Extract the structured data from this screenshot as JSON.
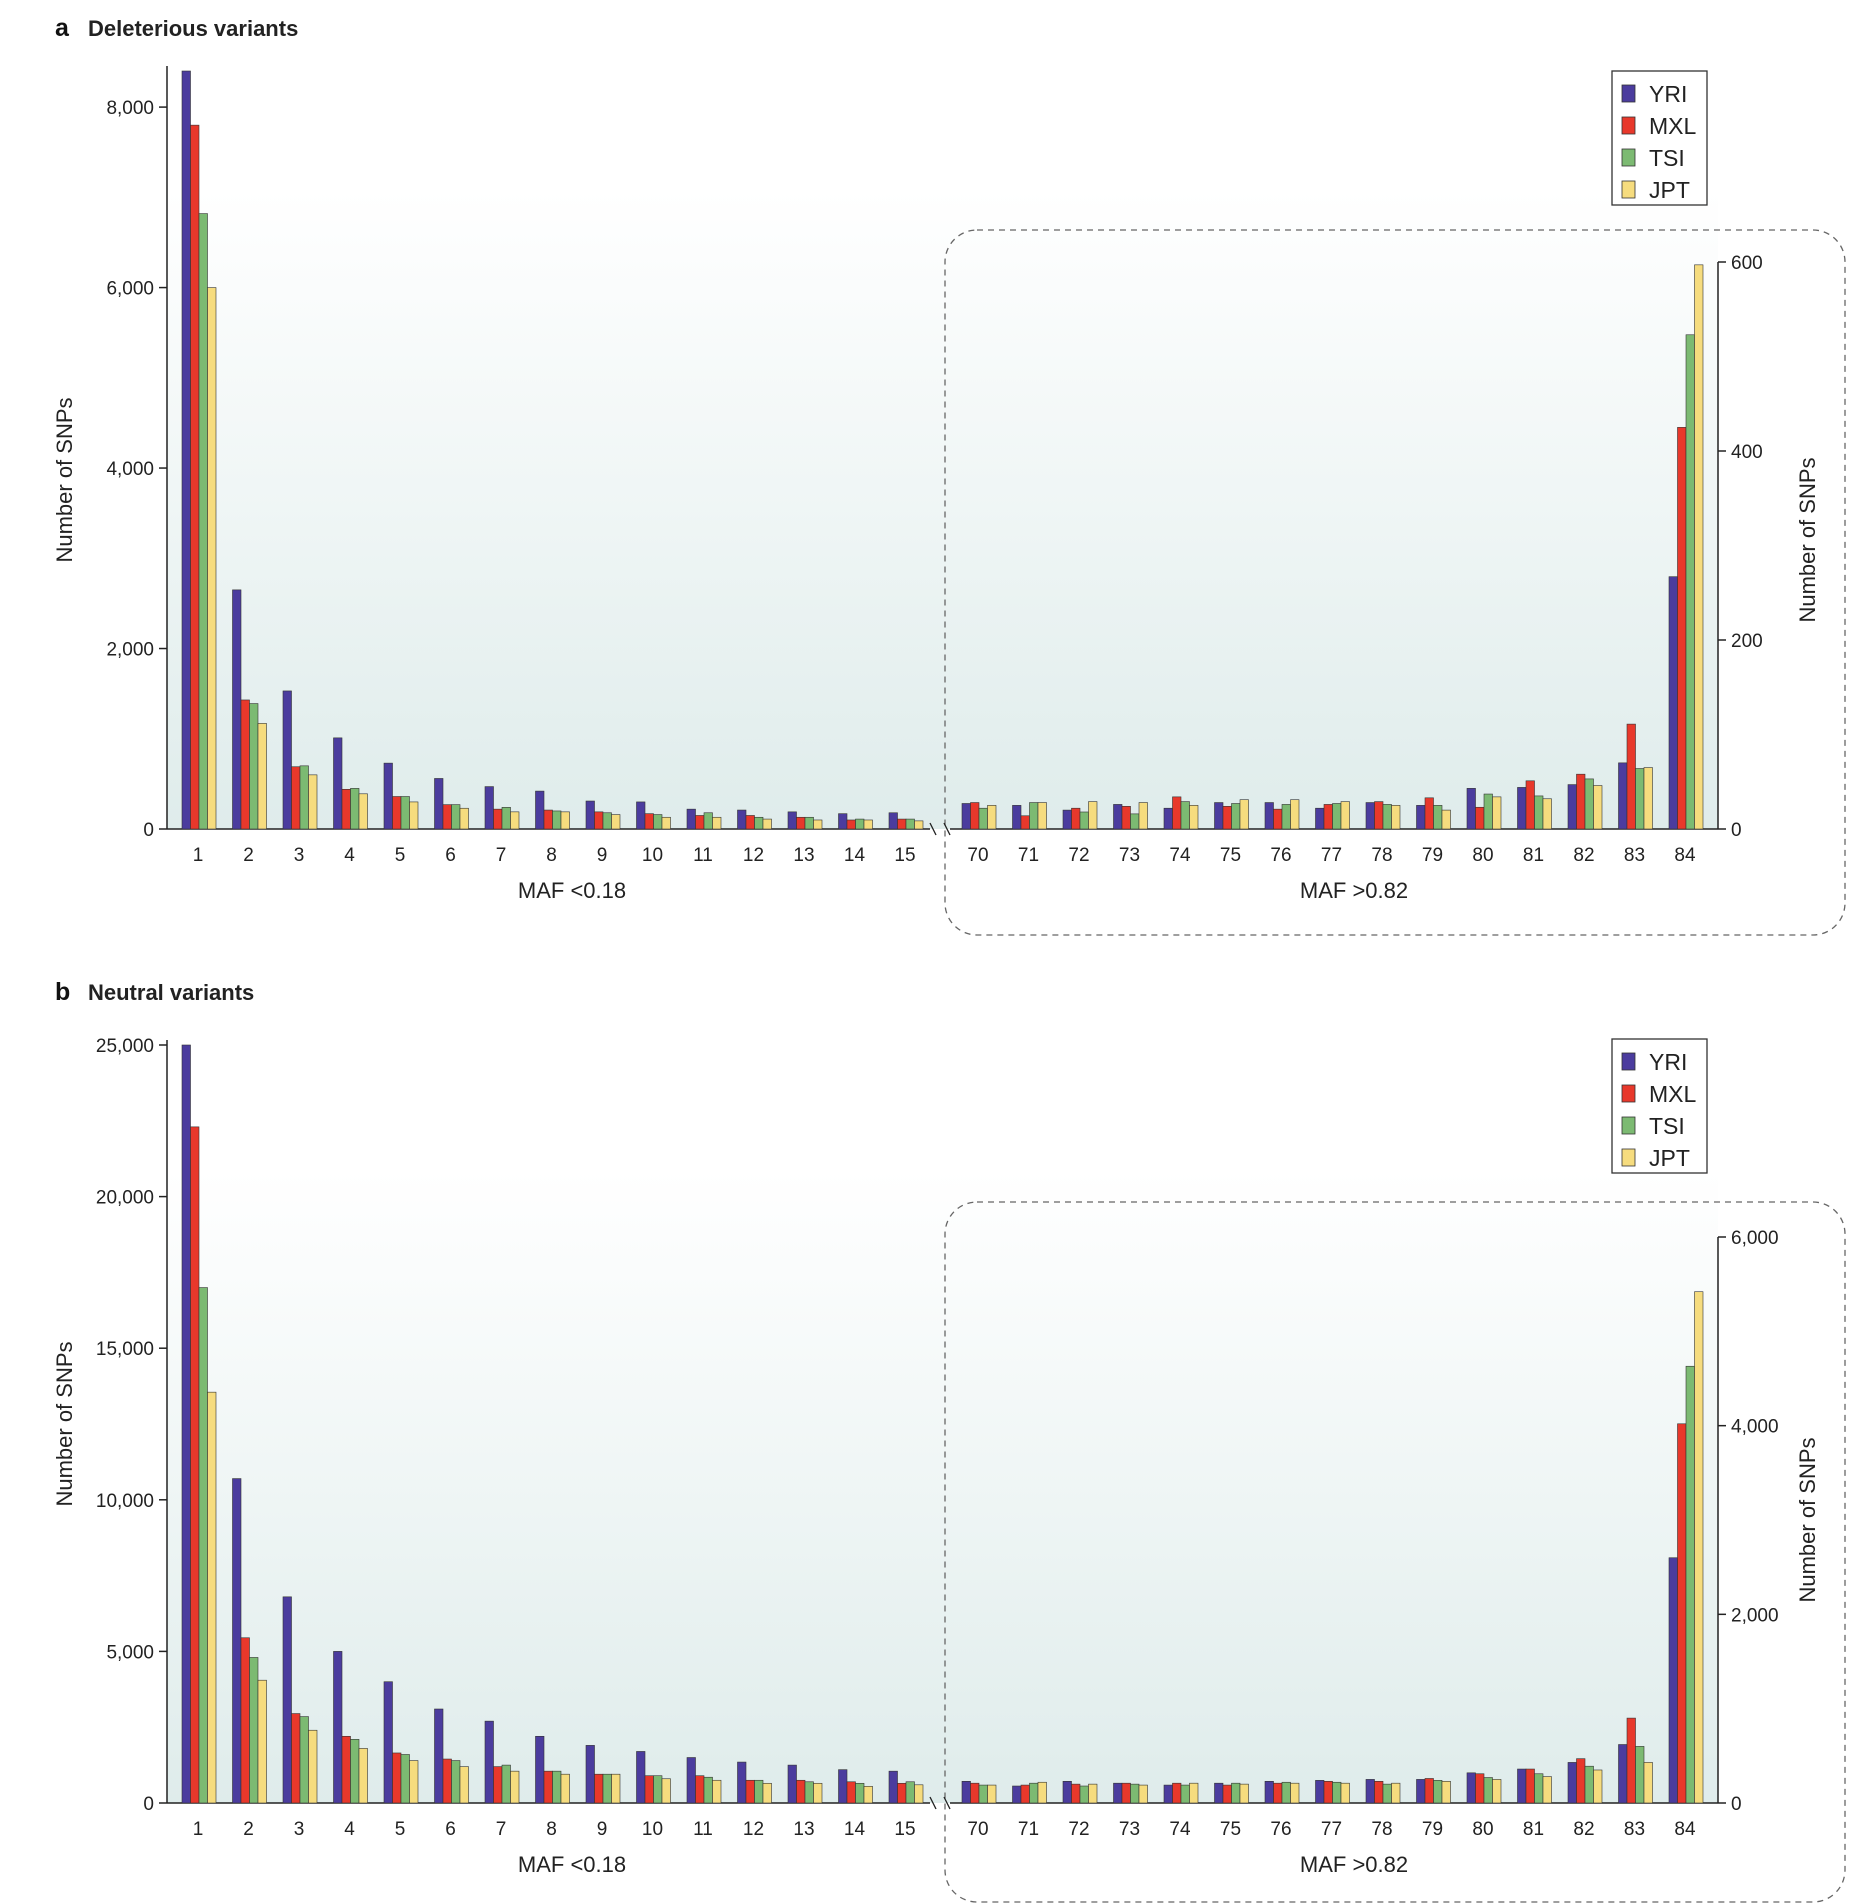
{
  "colors": {
    "YRI": "#4b3c9e",
    "MXL": "#e8382b",
    "TSI": "#7cba72",
    "JPT": "#f6dc7e",
    "gradient_top": "#ffffff",
    "gradient_bottom": "#dfeceb"
  },
  "chart_data": [
    {
      "type": "bar",
      "panel": "a",
      "title": "Deleterious variants",
      "legend": [
        "YRI",
        "MXL",
        "TSI",
        "JPT"
      ],
      "legend_position": "top-right",
      "left": {
        "xlabel": "MAF <0.18",
        "ylabel": "Number of SNPs",
        "ylim": [
          0,
          8400
        ],
        "yticks": [
          0,
          2000,
          4000,
          6000,
          8000
        ],
        "ytick_labels": [
          "0",
          "2,000",
          "4,000",
          "6,000",
          "8,000"
        ],
        "categories": [
          "1",
          "2",
          "3",
          "4",
          "5",
          "6",
          "7",
          "8",
          "9",
          "10",
          "11",
          "12",
          "13",
          "14",
          "15"
        ],
        "series": [
          {
            "name": "YRI",
            "values": [
              8400,
              2650,
              1530,
              1010,
              730,
              560,
              470,
              420,
              310,
              300,
              220,
              210,
              190,
              170,
              180
            ]
          },
          {
            "name": "MXL",
            "values": [
              7800,
              1430,
              690,
              440,
              360,
              270,
              220,
              210,
              190,
              170,
              150,
              150,
              130,
              100,
              110
            ]
          },
          {
            "name": "TSI",
            "values": [
              6820,
              1390,
              700,
              450,
              360,
              270,
              240,
              200,
              180,
              160,
              180,
              130,
              130,
              110,
              110
            ]
          },
          {
            "name": "JPT",
            "values": [
              6000,
              1170,
              600,
              390,
              300,
              230,
              190,
              190,
              160,
              130,
              130,
              110,
              100,
              100,
              90
            ]
          }
        ]
      },
      "right": {
        "xlabel": "MAF >0.82",
        "ylabel": "Number of SNPs",
        "ylim": [
          0,
          600
        ],
        "yticks": [
          0,
          200,
          400,
          600
        ],
        "ytick_labels": [
          "0",
          "200",
          "400",
          "600"
        ],
        "categories": [
          "70",
          "71",
          "72",
          "73",
          "74",
          "75",
          "76",
          "77",
          "78",
          "79",
          "80",
          "81",
          "82",
          "83",
          "84"
        ],
        "series": [
          {
            "name": "YRI",
            "values": [
              27,
              25,
              20,
              26,
              22,
              28,
              28,
              22,
              28,
              25,
              43,
              44,
              47,
              70,
              267
            ]
          },
          {
            "name": "MXL",
            "values": [
              28,
              14,
              22,
              24,
              34,
              24,
              21,
              26,
              29,
              33,
              23,
              51,
              58,
              111,
              425
            ]
          },
          {
            "name": "TSI",
            "values": [
              22,
              28,
              18,
              16,
              29,
              27,
              26,
              27,
              26,
              25,
              37,
              35,
              53,
              64,
              523
            ]
          },
          {
            "name": "JPT",
            "values": [
              25,
              28,
              29,
              28,
              25,
              31,
              31,
              29,
              25,
              20,
              34,
              32,
              46,
              65,
              597
            ]
          }
        ]
      }
    },
    {
      "type": "bar",
      "panel": "b",
      "title": "Neutral variants",
      "legend": [
        "YRI",
        "MXL",
        "TSI",
        "JPT"
      ],
      "legend_position": "top-right",
      "left": {
        "xlabel": "MAF <0.18",
        "ylabel": "Number of SNPs",
        "ylim": [
          0,
          25000
        ],
        "yticks": [
          0,
          5000,
          10000,
          15000,
          20000,
          25000
        ],
        "ytick_labels": [
          "0",
          "5,000",
          "10,000",
          "15,000",
          "20,000",
          "25,000"
        ],
        "categories": [
          "1",
          "2",
          "3",
          "4",
          "5",
          "6",
          "7",
          "8",
          "9",
          "10",
          "11",
          "12",
          "13",
          "14",
          "15"
        ],
        "series": [
          {
            "name": "YRI",
            "values": [
              25000,
              10700,
              6800,
              5000,
              4000,
              3100,
              2700,
              2200,
              1900,
              1700,
              1500,
              1350,
              1250,
              1100,
              1050
            ]
          },
          {
            "name": "MXL",
            "values": [
              22300,
              5450,
              2950,
              2200,
              1650,
              1450,
              1200,
              1050,
              950,
              900,
              900,
              750,
              750,
              700,
              650
            ]
          },
          {
            "name": "TSI",
            "values": [
              17000,
              4800,
              2850,
              2100,
              1600,
              1400,
              1250,
              1050,
              950,
              900,
              850,
              750,
              700,
              650,
              700
            ]
          },
          {
            "name": "JPT",
            "values": [
              13550,
              4050,
              2400,
              1800,
              1400,
              1200,
              1050,
              950,
              950,
              800,
              750,
              650,
              650,
              550,
              600
            ]
          }
        ]
      },
      "right": {
        "xlabel": "MAF >0.82",
        "ylabel": "Number of SNPs",
        "ylim": [
          0,
          6000
        ],
        "yticks": [
          0,
          2000,
          4000,
          6000
        ],
        "ytick_labels": [
          "0",
          "2,000",
          "4,000",
          "6,000"
        ],
        "categories": [
          "70",
          "71",
          "72",
          "73",
          "74",
          "75",
          "76",
          "77",
          "78",
          "79",
          "80",
          "81",
          "82",
          "83",
          "84"
        ],
        "series": [
          {
            "name": "YRI",
            "values": [
              230,
              180,
              230,
              210,
              190,
              210,
              230,
              240,
              250,
              250,
              320,
              360,
              430,
              620,
              2600
            ]
          },
          {
            "name": "MXL",
            "values": [
              210,
              190,
              200,
              210,
              210,
              190,
              210,
              230,
              230,
              260,
              310,
              360,
              470,
              900,
              4020
            ]
          },
          {
            "name": "TSI",
            "values": [
              190,
              210,
              180,
              200,
              190,
              210,
              220,
              220,
              200,
              240,
              270,
              310,
              390,
              600,
              4630
            ]
          },
          {
            "name": "JPT",
            "values": [
              190,
              220,
              200,
              190,
              210,
              200,
              210,
              210,
              210,
              230,
              250,
              280,
              350,
              430,
              5420
            ]
          }
        ]
      }
    }
  ]
}
